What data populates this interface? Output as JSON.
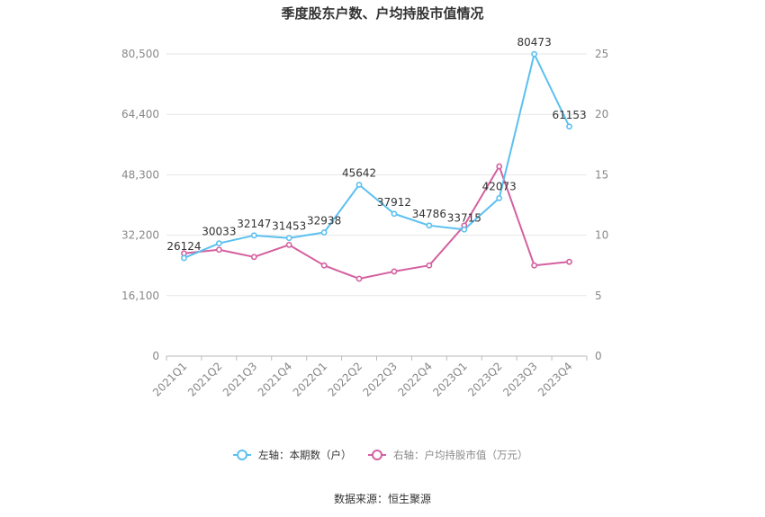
{
  "chart_data": {
    "type": "line",
    "title": "季度股东户数、户均持股市值情况",
    "source": "数据来源：恒生聚源",
    "categories": [
      "2021Q1",
      "2021Q2",
      "2021Q3",
      "2021Q4",
      "2022Q1",
      "2022Q2",
      "2022Q3",
      "2022Q4",
      "2023Q1",
      "2023Q2",
      "2023Q3",
      "2023Q4"
    ],
    "left_axis": {
      "ylim": [
        0,
        80500
      ],
      "ticks": [
        0,
        16100,
        32200,
        48300,
        64400,
        80500
      ],
      "tick_labels": [
        "0",
        "16,100",
        "32,200",
        "48,300",
        "64,400",
        "80,500"
      ]
    },
    "right_axis": {
      "ylim": [
        0,
        25
      ],
      "ticks": [
        0,
        5,
        10,
        15,
        20,
        25
      ],
      "tick_labels": [
        "0",
        "5",
        "10",
        "15",
        "20",
        "25"
      ]
    },
    "series": [
      {
        "name": "左轴：本期数（户）",
        "axis": "left",
        "color": "#5bc0f0",
        "values": [
          26124,
          30033,
          32147,
          31453,
          32938,
          45642,
          37912,
          34786,
          33715,
          42073,
          80473,
          61153
        ],
        "labels": [
          "26124",
          "30033",
          "32147",
          "31453",
          "32938",
          "45642",
          "37912",
          "34786",
          "33715",
          "42073",
          "80473",
          "61153"
        ]
      },
      {
        "name": "右轴：户均持股市值（万元）",
        "axis": "right",
        "color": "#d4609f",
        "values": [
          8.5,
          8.8,
          8.2,
          9.2,
          7.5,
          6.4,
          7.0,
          7.5,
          10.8,
          15.7,
          7.5,
          7.8
        ]
      }
    ],
    "grid": true,
    "legend": "bottom"
  }
}
